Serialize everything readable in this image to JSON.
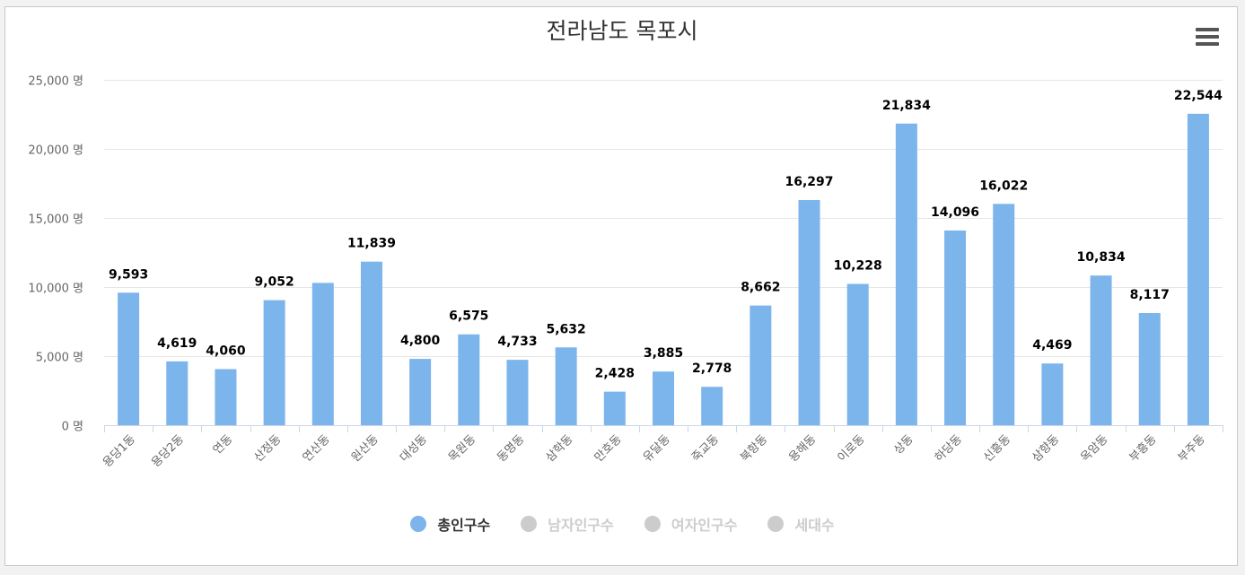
{
  "chart_data": {
    "type": "bar",
    "title": "전라남도 목포시",
    "categories": [
      "용당1동",
      "용당2동",
      "연동",
      "산정동",
      "연산동",
      "원산동",
      "대성동",
      "목원동",
      "동명동",
      "삼학동",
      "만호동",
      "유달동",
      "죽교동",
      "북항동",
      "용해동",
      "이로동",
      "상동",
      "하당동",
      "신흥동",
      "삼향동",
      "옥암동",
      "부흥동",
      "부주동"
    ],
    "series": [
      {
        "name": "총인구수",
        "values": [
          9593,
          4619,
          4060,
          9052,
          10300,
          11839,
          4800,
          6575,
          4733,
          5632,
          2428,
          3885,
          2778,
          8662,
          16297,
          10228,
          21834,
          14096,
          16022,
          4469,
          10834,
          8117,
          22544
        ],
        "data_labels": [
          "9,593",
          "4,619",
          "4,060",
          "9,052",
          "",
          "11,839",
          "4,800",
          "6,575",
          "4,733",
          "5,632",
          "2,428",
          "3,885",
          "2,778",
          "8,662",
          "16,297",
          "10,228",
          "21,834",
          "14,096",
          "16,022",
          "4,469",
          "10,834",
          "8,117",
          "22,544"
        ]
      }
    ],
    "ylim": [
      0,
      25000
    ],
    "yticks": [
      0,
      5000,
      10000,
      15000,
      20000,
      25000
    ],
    "ytick_labels": [
      "0 명",
      "5,000 명",
      "10,000 명",
      "15,000 명",
      "20,000 명",
      "25,000 명"
    ],
    "xlabel": "",
    "ylabel": "",
    "grid": true,
    "legend_position": "bottom-center"
  },
  "legend": [
    {
      "label": "총인구수",
      "color": "#7cb5ec",
      "active": true
    },
    {
      "label": "남자인구수",
      "color": "#cccccc",
      "active": false
    },
    {
      "label": "여자인구수",
      "color": "#cccccc",
      "active": false
    },
    {
      "label": "세대수",
      "color": "#cccccc",
      "active": false
    }
  ],
  "colors": {
    "bar": "#7cb5ec",
    "grid": "#e6e6e6",
    "axis": "#ccd6eb",
    "label": "#666666",
    "title": "#333333",
    "datalabel": "#000000"
  },
  "menu": {
    "icon": "hamburger-menu-icon"
  }
}
